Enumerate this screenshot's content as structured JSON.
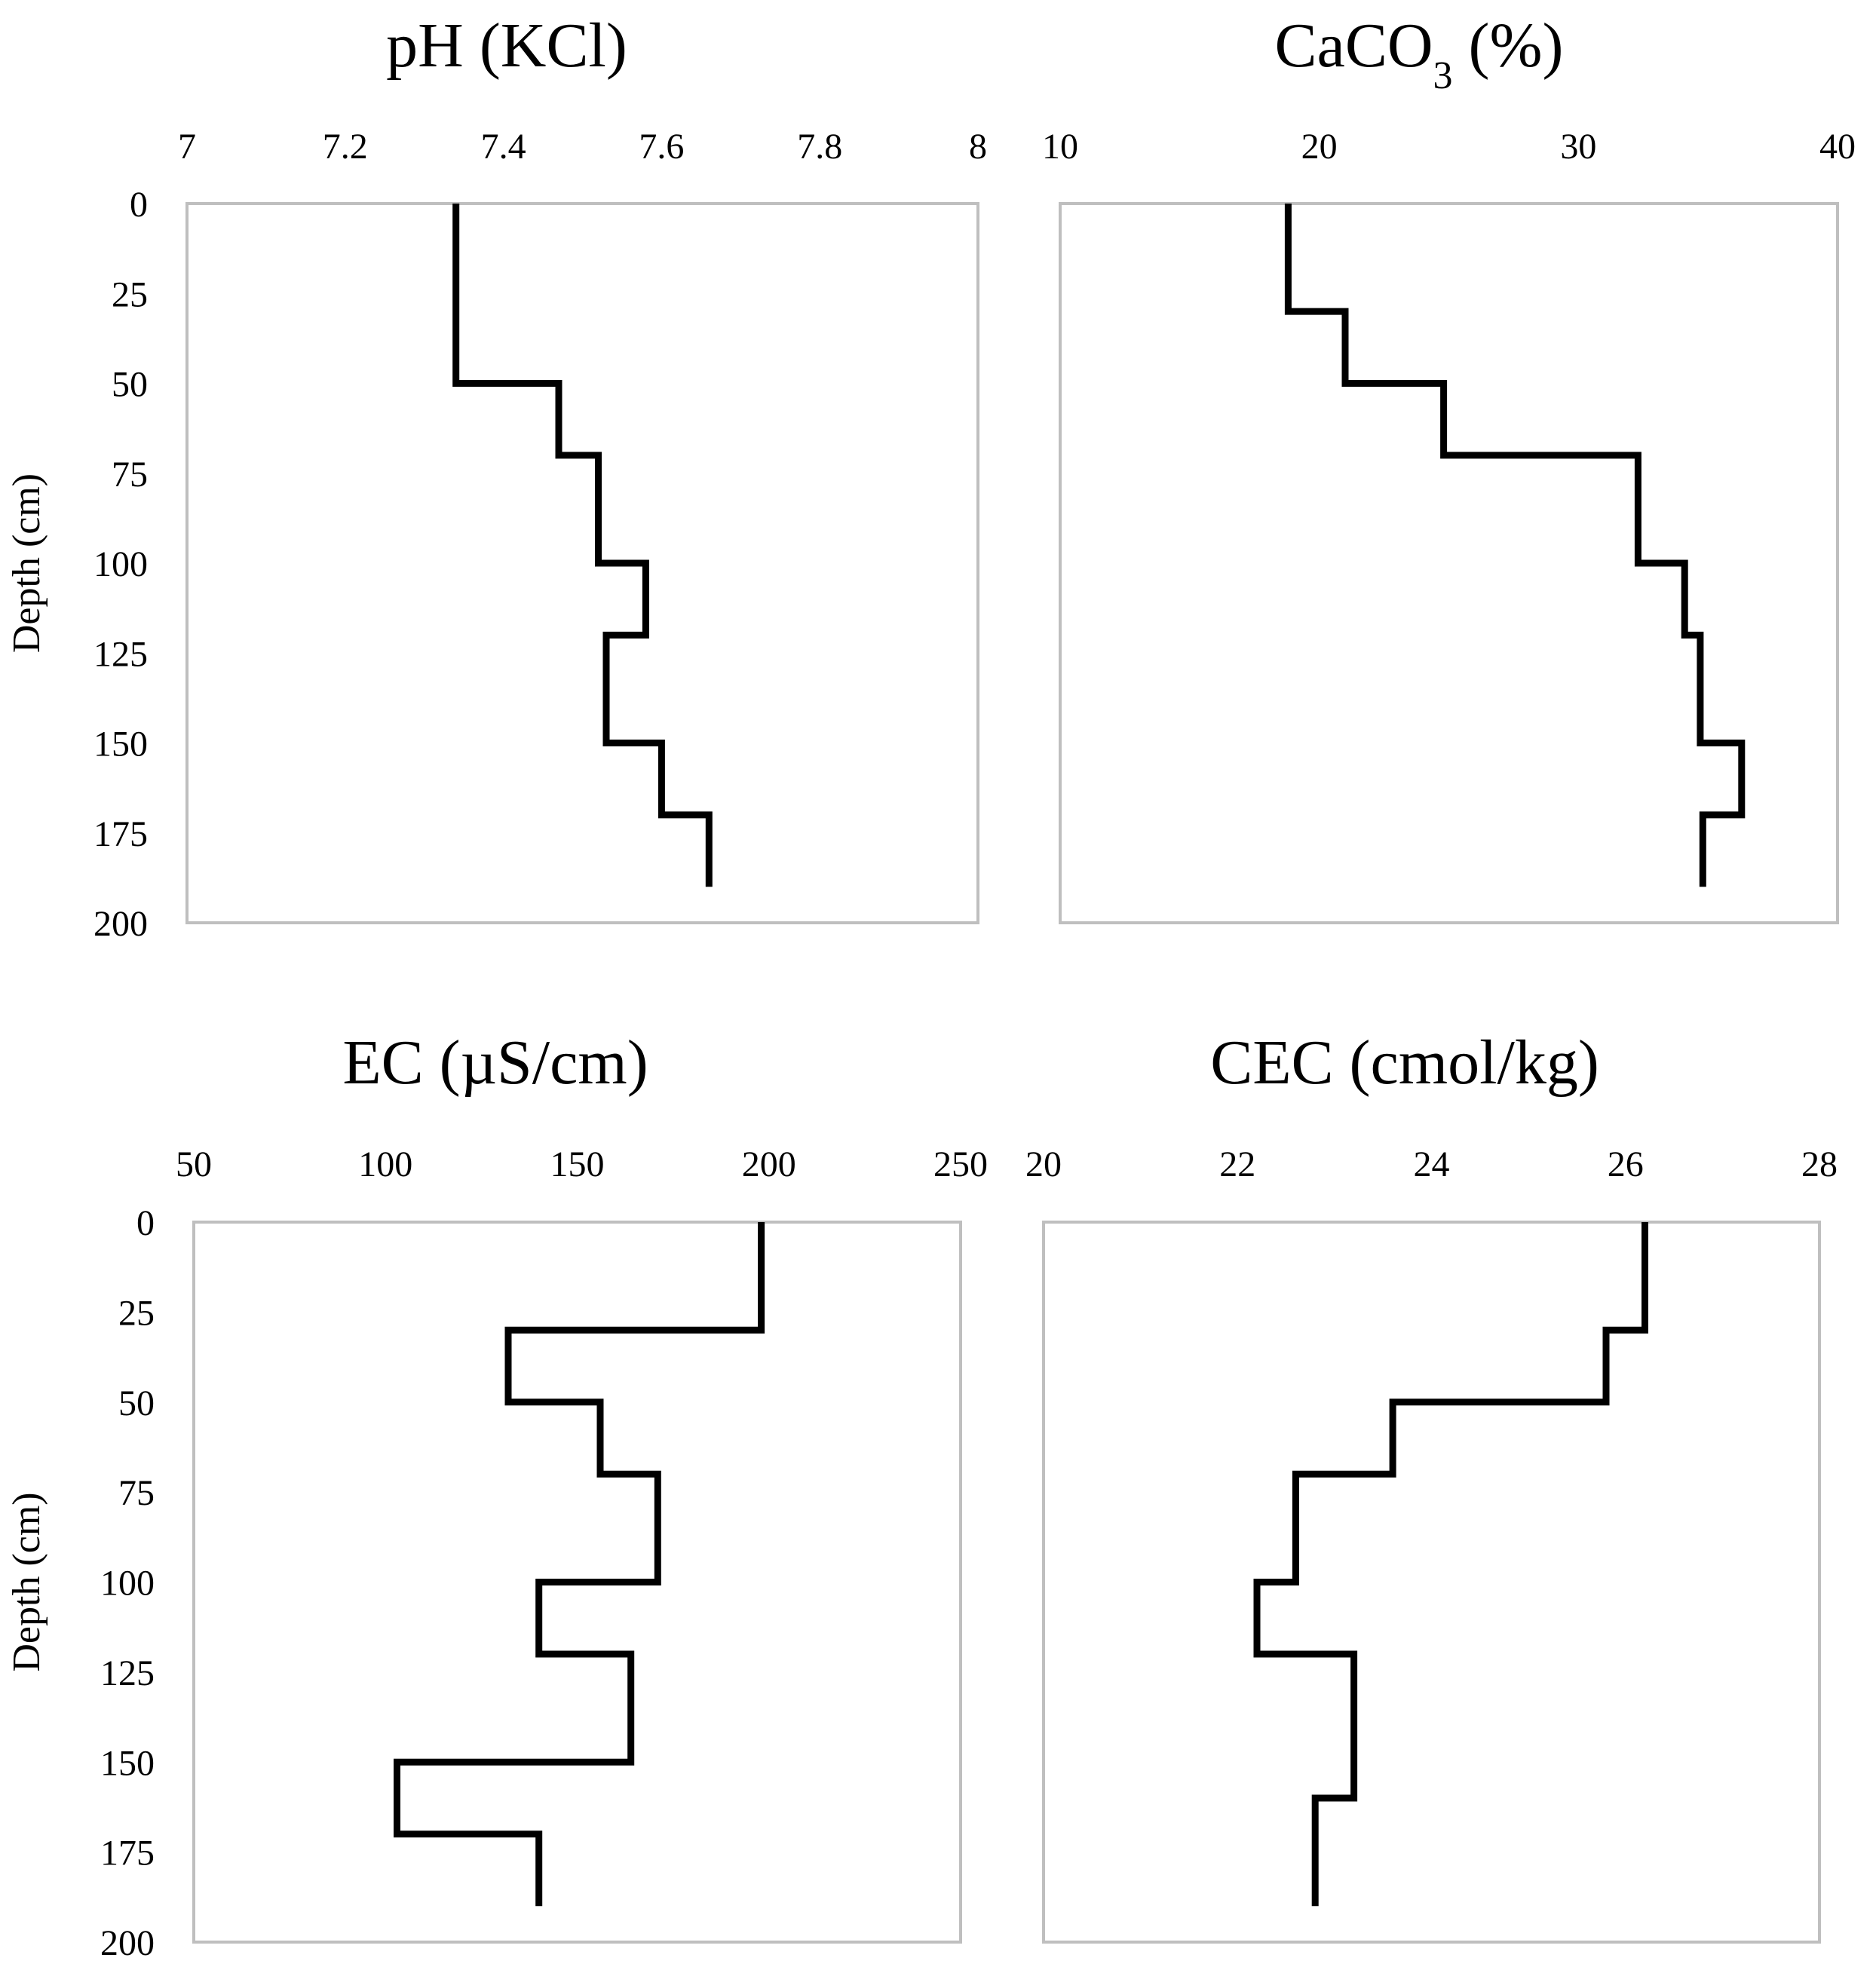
{
  "chart_data": [
    {
      "type": "line",
      "title": "pH (KCl)",
      "title_parts": [
        {
          "text": "pH (KCl)",
          "sub": false
        }
      ],
      "xlabel": "",
      "ylabel": "Depth (cm)",
      "xlim": [
        7,
        8
      ],
      "ylim": [
        0,
        200
      ],
      "x_ticks": [
        7,
        7.2,
        7.4,
        7.6,
        7.8,
        8
      ],
      "x_tick_labels": [
        "7",
        "7.2",
        "7.4",
        "7.6",
        "7.8",
        "8"
      ],
      "y_ticks": [
        0,
        25,
        50,
        75,
        100,
        125,
        150,
        175,
        200
      ],
      "y_tick_labels": [
        "0",
        "25",
        "50",
        "75",
        "100",
        "125",
        "150",
        "175",
        "200"
      ],
      "y_inverted": true,
      "x_axis_position": "top",
      "grid": false,
      "legend": "none",
      "line_color": "#000000",
      "frame_color": "#bfbfbf",
      "step_profile": [
        {
          "from": 0,
          "to": 50,
          "value": 7.34
        },
        {
          "from": 50,
          "to": 70,
          "value": 7.47
        },
        {
          "from": 70,
          "to": 100,
          "value": 7.52
        },
        {
          "from": 100,
          "to": 120,
          "value": 7.58
        },
        {
          "from": 120,
          "to": 150,
          "value": 7.53
        },
        {
          "from": 150,
          "to": 170,
          "value": 7.6
        },
        {
          "from": 170,
          "to": 190,
          "value": 7.66
        }
      ]
    },
    {
      "type": "line",
      "title": "CaCO3 (%)",
      "title_parts": [
        {
          "text": "CaCO",
          "sub": false
        },
        {
          "text": "3",
          "sub": true
        },
        {
          "text": "  (%)",
          "sub": false
        }
      ],
      "xlabel": "",
      "ylabel": "",
      "xlim": [
        10,
        40
      ],
      "ylim": [
        0,
        200
      ],
      "x_ticks": [
        10,
        20,
        30,
        40
      ],
      "x_tick_labels": [
        "10",
        "20",
        "30",
        "40"
      ],
      "y_ticks": [
        0,
        25,
        50,
        75,
        100,
        125,
        150,
        175,
        200
      ],
      "y_tick_labels": [],
      "y_inverted": true,
      "x_axis_position": "top",
      "grid": false,
      "legend": "none",
      "line_color": "#000000",
      "frame_color": "#bfbfbf",
      "step_profile": [
        {
          "from": 0,
          "to": 30,
          "value": 18.8
        },
        {
          "from": 30,
          "to": 50,
          "value": 21.0
        },
        {
          "from": 50,
          "to": 70,
          "value": 24.8
        },
        {
          "from": 70,
          "to": 100,
          "value": 32.3
        },
        {
          "from": 100,
          "to": 120,
          "value": 34.1
        },
        {
          "from": 120,
          "to": 150,
          "value": 34.7
        },
        {
          "from": 150,
          "to": 170,
          "value": 36.3
        },
        {
          "from": 170,
          "to": 190,
          "value": 34.8
        }
      ]
    },
    {
      "type": "line",
      "title": "EC (µS/cm)",
      "title_parts": [
        {
          "text": "EC (µS/cm)",
          "sub": false
        }
      ],
      "xlabel": "",
      "ylabel": "Depth (cm)",
      "xlim": [
        50,
        250
      ],
      "ylim": [
        0,
        200
      ],
      "x_ticks": [
        50,
        100,
        150,
        200,
        250
      ],
      "x_tick_labels": [
        "50",
        "100",
        "150",
        "200",
        "250"
      ],
      "y_ticks": [
        0,
        25,
        50,
        75,
        100,
        125,
        150,
        175,
        200
      ],
      "y_tick_labels": [
        "0",
        "25",
        "50",
        "75",
        "100",
        "125",
        "150",
        "175",
        "200"
      ],
      "y_inverted": true,
      "x_axis_position": "top",
      "grid": false,
      "legend": "none",
      "line_color": "#000000",
      "frame_color": "#bfbfbf",
      "step_profile": [
        {
          "from": 0,
          "to": 30,
          "value": 198
        },
        {
          "from": 30,
          "to": 50,
          "value": 132
        },
        {
          "from": 50,
          "to": 70,
          "value": 156
        },
        {
          "from": 70,
          "to": 100,
          "value": 171
        },
        {
          "from": 100,
          "to": 120,
          "value": 140
        },
        {
          "from": 120,
          "to": 150,
          "value": 164
        },
        {
          "from": 150,
          "to": 170,
          "value": 103
        },
        {
          "from": 170,
          "to": 190,
          "value": 140
        }
      ]
    },
    {
      "type": "line",
      "title": "CEC (cmol/kg)",
      "title_parts": [
        {
          "text": "CEC (cmol/kg)",
          "sub": false
        }
      ],
      "xlabel": "",
      "ylabel": "",
      "xlim": [
        20,
        28
      ],
      "ylim": [
        0,
        200
      ],
      "x_ticks": [
        20,
        22,
        24,
        26,
        28
      ],
      "x_tick_labels": [
        "20",
        "22",
        "24",
        "26",
        "28"
      ],
      "y_ticks": [
        0,
        25,
        50,
        75,
        100,
        125,
        150,
        175,
        200
      ],
      "y_tick_labels": [],
      "y_inverted": true,
      "x_axis_position": "top",
      "grid": false,
      "legend": "none",
      "line_color": "#000000",
      "frame_color": "#bfbfbf",
      "step_profile": [
        {
          "from": 0,
          "to": 30,
          "value": 26.2
        },
        {
          "from": 30,
          "to": 50,
          "value": 25.8
        },
        {
          "from": 50,
          "to": 70,
          "value": 23.6
        },
        {
          "from": 70,
          "to": 100,
          "value": 22.6
        },
        {
          "from": 100,
          "to": 120,
          "value": 22.2
        },
        {
          "from": 120,
          "to": 160,
          "value": 23.2
        },
        {
          "from": 160,
          "to": 190,
          "value": 22.8
        }
      ]
    }
  ]
}
